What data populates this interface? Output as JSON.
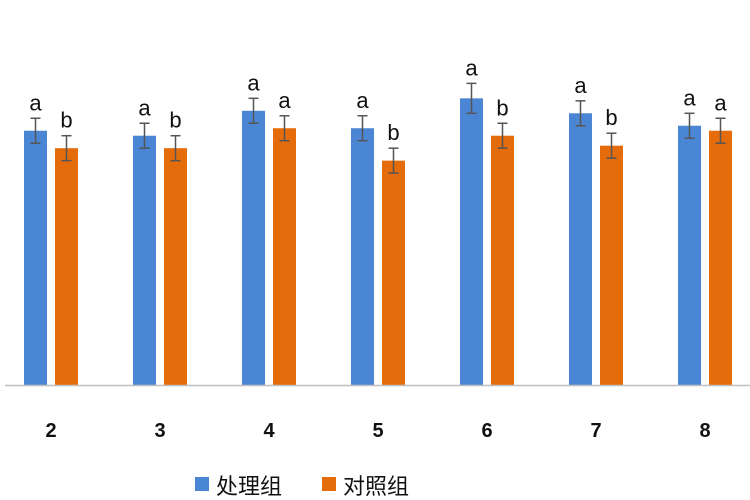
{
  "chart_data": {
    "type": "bar",
    "categories": [
      "2",
      "3",
      "4",
      "5",
      "6",
      "7",
      "8"
    ],
    "series": [
      {
        "name": "处理组",
        "color": "#4a86d4",
        "values": [
          10.2,
          10.0,
          11.0,
          10.3,
          11.5,
          10.9,
          10.4
        ],
        "errors": [
          0.5,
          0.5,
          0.5,
          0.5,
          0.6,
          0.5,
          0.5
        ],
        "significance": [
          "a",
          "a",
          "a",
          "a",
          "a",
          "a",
          "a"
        ]
      },
      {
        "name": "对照组",
        "color": "#e46c0a",
        "values": [
          9.5,
          9.5,
          10.3,
          9.0,
          10.0,
          9.6,
          10.2
        ],
        "errors": [
          0.5,
          0.5,
          0.5,
          0.5,
          0.5,
          0.5,
          0.5
        ],
        "significance": [
          "b",
          "b",
          "a",
          "b",
          "b",
          "b",
          "a"
        ]
      }
    ],
    "ylim": [
      0,
      14
    ],
    "title": "",
    "xlabel": "",
    "ylabel": "",
    "legend_position": "bottom-center",
    "grid": false,
    "axis_color": "#bfbfbf"
  }
}
